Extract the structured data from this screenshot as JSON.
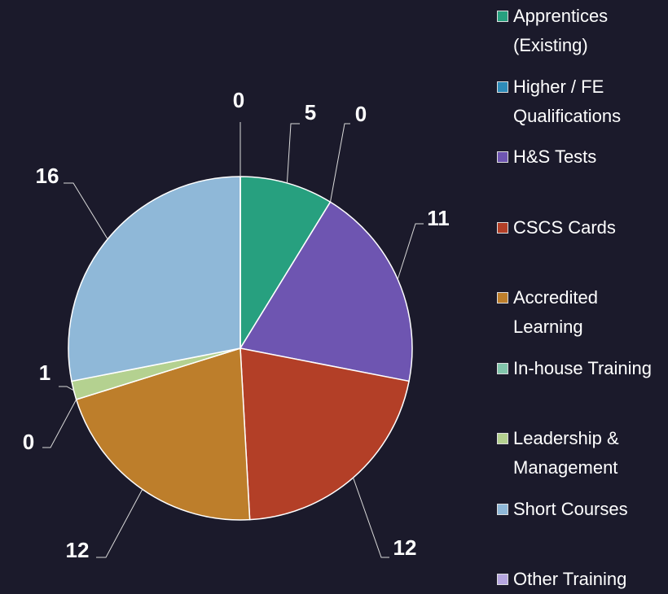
{
  "chart_data": {
    "type": "pie",
    "categories": [
      "Apprentices (Existing)",
      "Higher / FE Qualifications",
      "H&S Tests",
      "CSCS Cards",
      "Accredited Learning",
      "In-house Training",
      "Leadership & Management",
      "Short Courses",
      "Other Training"
    ],
    "values": [
      5,
      0,
      11,
      12,
      12,
      0,
      1,
      16,
      0
    ],
    "colors": [
      "#27a07f",
      "#2e8bb8",
      "#6e55b1",
      "#b33f27",
      "#bd7e2b",
      "#82c6ac",
      "#b4d190",
      "#8fb8d8",
      "#b6a6e0"
    ]
  }
}
